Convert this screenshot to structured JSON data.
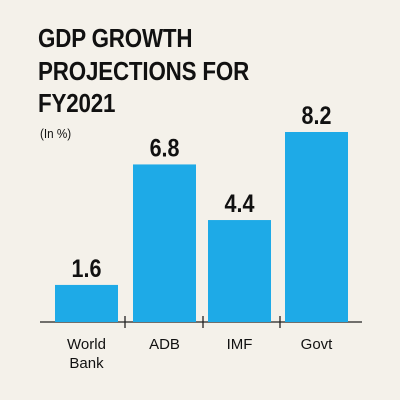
{
  "title_lines": [
    "GDP GROWTH",
    "PROJECTIONS FOR",
    "FY2021"
  ],
  "unit": "(In %)",
  "colors": {
    "bar": "#1eaae7",
    "background": "#f4f1ea",
    "text": "#111111"
  },
  "chart_data": {
    "type": "bar",
    "title": "GDP GROWTH PROJECTIONS FOR FY2021",
    "ylabel": "(In %)",
    "categories": [
      [
        "World",
        "Bank"
      ],
      [
        "ADB"
      ],
      [
        "IMF"
      ],
      [
        "Govt"
      ]
    ],
    "values": [
      1.6,
      6.8,
      4.4,
      8.2
    ],
    "value_labels": [
      "1.6",
      "6.8",
      "4.4",
      "8.2"
    ],
    "ylim": [
      0,
      8.2
    ],
    "grid": false,
    "legend": "none"
  }
}
